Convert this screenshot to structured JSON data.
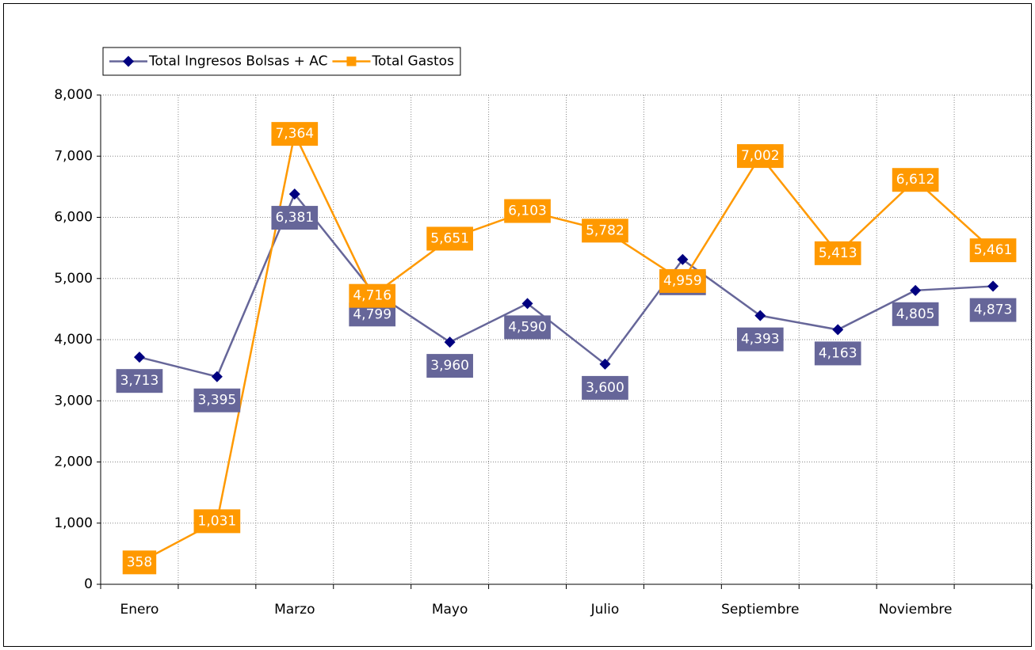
{
  "chart_data": {
    "type": "line",
    "categories": [
      "Enero",
      null,
      "Marzo",
      null,
      "Mayo",
      null,
      "Julio",
      null,
      "Septiembre",
      null,
      "Noviembre",
      null
    ],
    "series": [
      {
        "name": "Total Ingresos Bolsas + AC",
        "color": "#666699",
        "marker": "diamond",
        "marker_color": "#000080",
        "values": [
          3713,
          3395,
          6381,
          4799,
          3960,
          4590,
          3600,
          5310,
          4393,
          4163,
          4805,
          4873
        ],
        "value_labels": [
          "3,713",
          "3,395",
          "6,381",
          "4,799",
          "3,960",
          "4,590",
          "3,600",
          "5,310",
          "4,393",
          "4,163",
          "4,805",
          "4,873"
        ]
      },
      {
        "name": "Total Gastos",
        "color": "#ff9900",
        "marker": "square",
        "marker_color": "#ff9900",
        "values": [
          358,
          1031,
          7364,
          4716,
          5651,
          6103,
          5782,
          4959,
          7002,
          5413,
          6612,
          5461
        ],
        "value_labels": [
          "358",
          "1,031",
          "7,364",
          "4,716",
          "5,651",
          "6,103",
          "5,782",
          "4,959",
          "7,002",
          "5,413",
          "6,612",
          "5,461"
        ]
      }
    ],
    "ylim": [
      0,
      8000
    ],
    "yticks": [
      0,
      {
        "value": 1000,
        "label": "1,000"
      },
      {
        "value": 2000,
        "label": "2,000"
      },
      {
        "value": 3000,
        "label": "3,000"
      },
      {
        "value": 4000,
        "label": "4,000"
      },
      {
        "value": 5000,
        "label": "5,000"
      },
      {
        "value": 6000,
        "label": "6,000"
      },
      {
        "value": 7000,
        "label": "7,000"
      },
      {
        "value": 8000,
        "label": "8,000"
      }
    ],
    "grid": true,
    "legend": "top-left"
  }
}
